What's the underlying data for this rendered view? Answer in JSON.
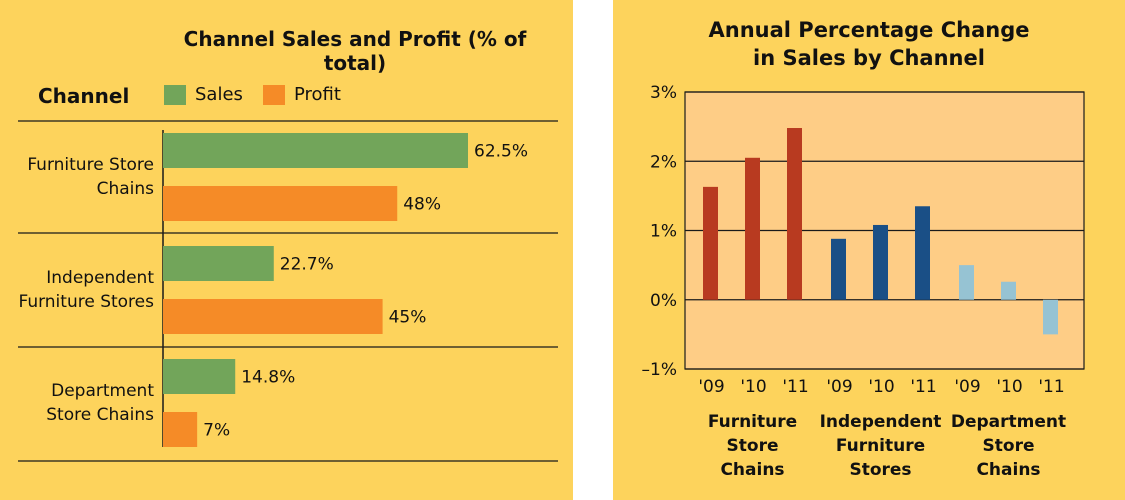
{
  "chart_data": [
    {
      "type": "bar",
      "orientation": "horizontal",
      "title": "Channel Sales and Profit (% of total)",
      "category_header": "Channel",
      "categories": [
        [
          "Furniture Store",
          "Chains"
        ],
        [
          "Independent",
          "Furniture Stores"
        ],
        [
          "Department",
          "Store Chains"
        ]
      ],
      "series": [
        {
          "name": "Sales",
          "values": [
            62.5,
            22.7,
            14.8
          ],
          "labels": [
            "62.5%",
            "22.7%",
            "14.8%"
          ],
          "color": "#72a55a"
        },
        {
          "name": "Profit",
          "values": [
            48,
            45,
            7
          ],
          "labels": [
            "48%",
            "45%",
            "7%"
          ],
          "color": "#f58b27"
        }
      ],
      "xlim": [
        0,
        100
      ],
      "legend": "top"
    },
    {
      "type": "bar",
      "title": "Annual Percentage Change in Sales by Channel",
      "title_lines": [
        "Annual Percentage Change",
        "in Sales by Channel"
      ],
      "ylim": [
        -1,
        3
      ],
      "yticks": [
        3,
        2,
        1,
        0,
        -1
      ],
      "ytick_labels": [
        "3%",
        "2%",
        "1%",
        "0%",
        "–1%"
      ],
      "grid": true,
      "groups": [
        {
          "name": [
            "Furniture",
            "Store",
            "Chains"
          ],
          "years": [
            "'09",
            "'10",
            "'11"
          ],
          "values": [
            1.63,
            2.05,
            2.48
          ],
          "color": "#b83a20"
        },
        {
          "name": [
            "Independent",
            "Furniture",
            "Stores"
          ],
          "years": [
            "'09",
            "'10",
            "'11"
          ],
          "values": [
            0.88,
            1.08,
            1.35
          ],
          "color": "#1a4f86"
        },
        {
          "name": [
            "Department",
            "Store",
            "Chains"
          ],
          "years": [
            "'09",
            "'10",
            "'11"
          ],
          "values": [
            0.5,
            0.26,
            -0.5
          ],
          "color": "#96c3d3"
        }
      ]
    }
  ]
}
